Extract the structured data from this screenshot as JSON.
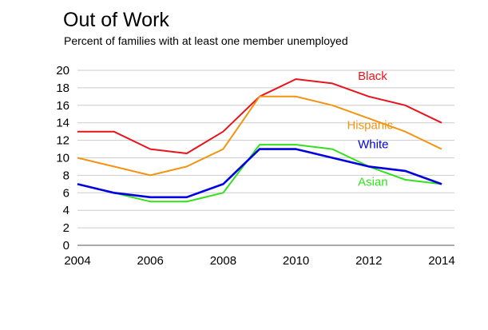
{
  "header": {
    "title": "Out of Work",
    "subtitle": "Percent of families with at least one member unemployed"
  },
  "chart_data": {
    "type": "line",
    "title": "Out of Work",
    "subtitle": "Percent of families with at least one member unemployed",
    "xlabel": "",
    "ylabel": "",
    "x": [
      2004,
      2005,
      2006,
      2007,
      2008,
      2009,
      2010,
      2011,
      2012,
      2013,
      2014
    ],
    "xlim": [
      2004,
      2014
    ],
    "ylim": [
      0,
      20
    ],
    "x_ticks": [
      "2004",
      "2006",
      "2008",
      "2010",
      "2012",
      "2014"
    ],
    "y_ticks": [
      "0",
      "2",
      "4",
      "6",
      "8",
      "10",
      "12",
      "14",
      "16",
      "18",
      "20"
    ],
    "grid": true,
    "legend": "inline labels",
    "series": [
      {
        "name": "Black",
        "color": "#e8141c",
        "values": [
          13,
          13,
          11,
          10.5,
          13,
          17,
          19,
          18.5,
          17,
          16,
          14
        ],
        "label_at": [
          2011.7,
          18.9
        ]
      },
      {
        "name": "Hispanic",
        "color": "#f39411",
        "values": [
          10,
          9,
          8,
          9,
          11,
          17,
          17,
          16,
          14.5,
          13,
          11
        ],
        "label_at": [
          2011.4,
          13.3
        ]
      },
      {
        "name": "White",
        "color": "#0000e0",
        "values": [
          7,
          6,
          5.5,
          5.5,
          7,
          11,
          11,
          10,
          9,
          8.5,
          7
        ],
        "label_at": [
          2011.7,
          11.1
        ]
      },
      {
        "name": "Asian",
        "color": "#33e01c",
        "values": [
          7,
          6,
          5,
          5,
          6,
          11.5,
          11.5,
          11,
          9,
          7.5,
          7
        ],
        "label_at": [
          2011.7,
          6.8
        ]
      }
    ]
  }
}
